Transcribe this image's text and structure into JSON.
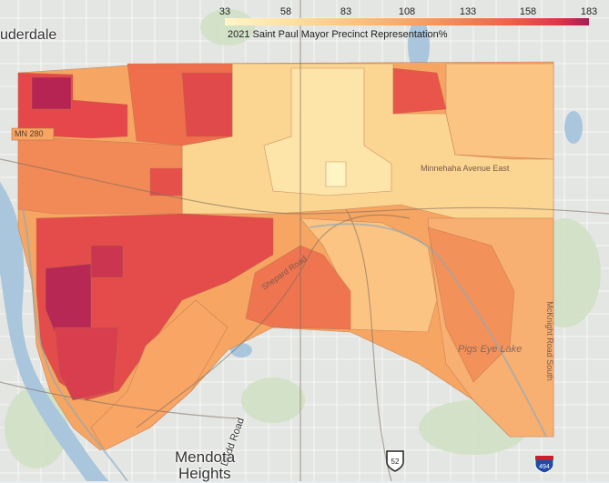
{
  "legend": {
    "title": "2021 Saint Paul Mayor Precinct Representation%",
    "ticks": [
      "33",
      "58",
      "83",
      "108",
      "133",
      "158",
      "183"
    ],
    "min": 33,
    "max": 183
  },
  "colors": {
    "low": "#fff6c8",
    "mid_low": "#fbbf78",
    "mid": "#f6955a",
    "high": "#ec6348",
    "very_high": "#d9354a",
    "max": "#a81c56",
    "base_map": "#e4e6e3",
    "river": "#aac6dc"
  },
  "places": {
    "lauderdale": "uderdale",
    "mendota": "Mendota",
    "heights": "Heights",
    "dodd_road": "Dodd Road",
    "pigs_eye_lake": "Pigs Eye Lake",
    "shepard_road": "Shepard Road",
    "minnehaha": "Minnehaha Avenue East",
    "mcknight": "McKnight Road South",
    "mn280": "MN 280"
  },
  "shields": {
    "us": "52",
    "interstate": "494"
  }
}
